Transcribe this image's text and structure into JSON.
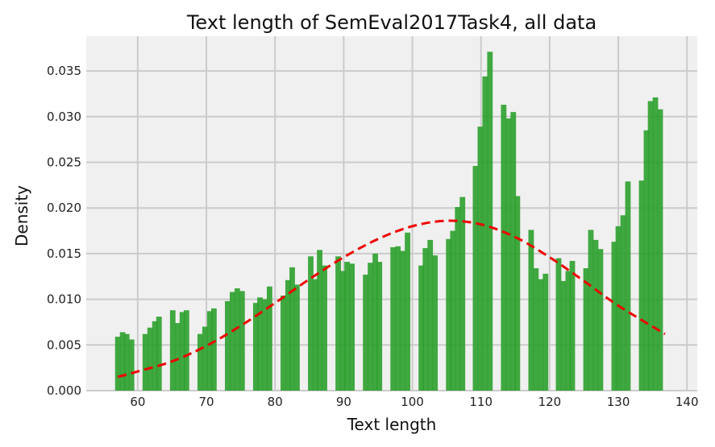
{
  "chart_data": {
    "type": "bar",
    "title": "Text length of SemEval2017Task4, all data",
    "xlabel": "Text length",
    "ylabel": "Density",
    "xlim": [
      52.5,
      141.5
    ],
    "ylim": [
      0,
      0.0388
    ],
    "xticks": [
      60,
      70,
      80,
      90,
      100,
      110,
      120,
      130,
      140
    ],
    "yticks": [
      0.0,
      0.005,
      0.01,
      0.015,
      0.02,
      0.025,
      0.03,
      0.035
    ],
    "ytick_labels": [
      "0.000",
      "0.005",
      "0.010",
      "0.015",
      "0.020",
      "0.025",
      "0.030",
      "0.035"
    ],
    "grid": true,
    "bar_width": 0.8,
    "bar_color": "#2ca02c",
    "curve_color": "#ee0000",
    "background_color": "#f0f0f0",
    "bars": {
      "x": [
        57.1,
        57.8,
        58.4,
        59.1,
        59.8,
        61.1,
        61.8,
        62.5,
        63.1,
        63.8,
        65.1,
        65.8,
        66.5,
        67.1,
        67.8,
        69.1,
        69.8,
        70.5,
        71.1,
        71.8,
        73.1,
        73.8,
        74.5,
        75.2,
        75.8,
        77.2,
        77.8,
        78.5,
        79.2,
        79.9,
        81.2,
        81.9,
        82.5,
        83.2,
        83.9,
        85.2,
        85.9,
        86.5,
        87.2,
        87.9,
        89.2,
        89.9,
        90.5,
        91.2,
        91.9,
        93.2,
        93.9,
        94.6,
        95.2,
        95.9,
        97.2,
        97.9,
        98.6,
        99.3,
        99.9,
        101.3,
        101.9,
        102.6,
        103.3,
        103.9,
        105.3,
        105.9,
        106.6,
        107.3,
        107.9,
        109.2,
        109.9,
        110.6,
        111.3,
        112.0,
        113.3,
        114.0,
        114.7,
        115.3,
        116.0,
        117.3,
        118.0,
        118.7,
        119.4,
        120.0,
        121.3,
        122.0,
        122.7,
        123.3,
        124.0,
        125.3,
        126.0,
        126.7,
        127.4,
        128.0,
        129.4,
        130.0,
        130.7,
        131.4,
        132.0,
        133.4,
        134.1,
        134.7,
        135.4,
        136.1
      ],
      "density": [
        0.0059,
        0.0064,
        0.0062,
        0.0056,
        0.0,
        0.0062,
        0.0069,
        0.0076,
        0.0081,
        0.0,
        0.0088,
        0.0074,
        0.0086,
        0.0088,
        0.0,
        0.0062,
        0.007,
        0.0087,
        0.009,
        0.0,
        0.0098,
        0.0108,
        0.0112,
        0.0109,
        0.0,
        0.0096,
        0.0102,
        0.01,
        0.0114,
        0.0,
        0.0104,
        0.0121,
        0.0135,
        0.0116,
        0.0,
        0.0147,
        0.0122,
        0.0154,
        0.0137,
        0.0,
        0.0147,
        0.0131,
        0.0141,
        0.0139,
        0.0,
        0.0127,
        0.014,
        0.015,
        0.0141,
        0.0,
        0.0157,
        0.0158,
        0.0153,
        0.0173,
        0.0,
        0.0137,
        0.0156,
        0.0165,
        0.0148,
        0.0,
        0.0166,
        0.0175,
        0.0201,
        0.0212,
        0.0,
        0.0246,
        0.0289,
        0.0344,
        0.0371,
        0.0,
        0.0313,
        0.0298,
        0.0305,
        0.0213,
        0.0,
        0.0176,
        0.0134,
        0.0122,
        0.0128,
        0.0,
        0.0145,
        0.012,
        0.0131,
        0.0142,
        0.0,
        0.0134,
        0.0176,
        0.0165,
        0.0155,
        0.0,
        0.0163,
        0.018,
        0.0192,
        0.0229,
        0.0,
        0.023,
        0.0285,
        0.0317,
        0.0321,
        0.0308
      ]
    },
    "curve": {
      "style": "dashed",
      "x": [
        57.1,
        60,
        65,
        70,
        75,
        80,
        85,
        90,
        95,
        100,
        105,
        110,
        115,
        120,
        125,
        130,
        136.8
      ],
      "density": [
        0.0015,
        0.0021,
        0.0032,
        0.0049,
        0.0071,
        0.0096,
        0.0122,
        0.0146,
        0.0166,
        0.018,
        0.0186,
        0.0182,
        0.0168,
        0.0146,
        0.012,
        0.0093,
        0.0062
      ]
    }
  }
}
